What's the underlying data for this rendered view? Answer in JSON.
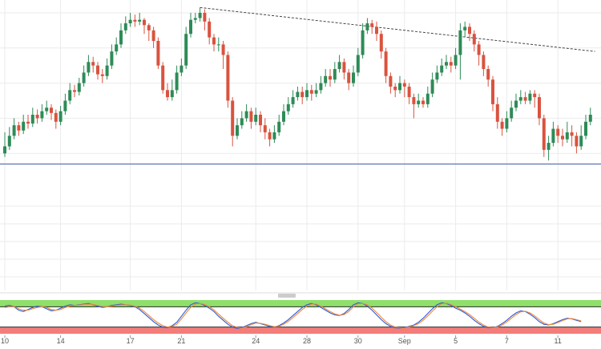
{
  "chart_data": [
    {
      "type": "candlestick",
      "title": "",
      "xlabel": "",
      "ylabel": "",
      "ylim": [
        0,
        100
      ],
      "grid": true,
      "x_ticks": [
        {
          "label": "10",
          "index": 0
        },
        {
          "label": "14",
          "index": 12
        },
        {
          "label": "17",
          "index": 27
        },
        {
          "label": "21",
          "index": 38
        },
        {
          "label": "24",
          "index": 54
        },
        {
          "label": "28",
          "index": 65
        },
        {
          "label": "30",
          "index": 76
        },
        {
          "label": "Sep",
          "index": 86
        },
        {
          "label": "5",
          "index": 97
        },
        {
          "label": "7",
          "index": 108
        },
        {
          "label": "11",
          "index": 119
        }
      ],
      "candles": [
        [
          20,
          24,
          32,
          18
        ],
        [
          24,
          30,
          35,
          22
        ],
        [
          30,
          36,
          40,
          28
        ],
        [
          36,
          33,
          38,
          30
        ],
        [
          33,
          38,
          42,
          31
        ],
        [
          38,
          37,
          42,
          34
        ],
        [
          37,
          42,
          46,
          35
        ],
        [
          42,
          40,
          45,
          37
        ],
        [
          40,
          44,
          48,
          38
        ],
        [
          44,
          46,
          50,
          42
        ],
        [
          46,
          43,
          48,
          39
        ],
        [
          43,
          38,
          45,
          34
        ],
        [
          38,
          44,
          47,
          36
        ],
        [
          44,
          50,
          54,
          42
        ],
        [
          50,
          56,
          60,
          48
        ],
        [
          56,
          55,
          59,
          52
        ],
        [
          55,
          60,
          63,
          53
        ],
        [
          60,
          66,
          70,
          58
        ],
        [
          66,
          72,
          76,
          64
        ],
        [
          72,
          70,
          75,
          66
        ],
        [
          70,
          65,
          72,
          62
        ],
        [
          65,
          64,
          68,
          60
        ],
        [
          64,
          70,
          74,
          62
        ],
        [
          70,
          78,
          82,
          68
        ],
        [
          78,
          82,
          86,
          76
        ],
        [
          82,
          90,
          94,
          80
        ],
        [
          90,
          94,
          98,
          88
        ],
        [
          94,
          96,
          100,
          92
        ],
        [
          96,
          95,
          99,
          92
        ],
        [
          95,
          96,
          100,
          93
        ],
        [
          96,
          93,
          97,
          88
        ],
        [
          93,
          90,
          94,
          84
        ],
        [
          90,
          84,
          92,
          80
        ],
        [
          84,
          70,
          86,
          68
        ],
        [
          70,
          56,
          72,
          54
        ],
        [
          56,
          52,
          60,
          50
        ],
        [
          52,
          56,
          62,
          50
        ],
        [
          56,
          66,
          70,
          54
        ],
        [
          66,
          70,
          74,
          64
        ],
        [
          70,
          88,
          92,
          68
        ],
        [
          88,
          96,
          100,
          86
        ],
        [
          96,
          97,
          100,
          94
        ],
        [
          97,
          100,
          103,
          95
        ],
        [
          100,
          95,
          102,
          90
        ],
        [
          95,
          86,
          97,
          82
        ],
        [
          86,
          82,
          88,
          78
        ],
        [
          82,
          82,
          86,
          78
        ],
        [
          82,
          76,
          84,
          68
        ],
        [
          76,
          50,
          78,
          46
        ],
        [
          50,
          30,
          52,
          24
        ],
        [
          30,
          36,
          40,
          28
        ],
        [
          36,
          40,
          44,
          34
        ],
        [
          40,
          44,
          48,
          38
        ],
        [
          44,
          38,
          46,
          34
        ],
        [
          38,
          42,
          46,
          36
        ],
        [
          42,
          36,
          44,
          32
        ],
        [
          36,
          32,
          40,
          28
        ],
        [
          32,
          28,
          34,
          24
        ],
        [
          28,
          32,
          36,
          26
        ],
        [
          32,
          38,
          42,
          30
        ],
        [
          38,
          44,
          48,
          36
        ],
        [
          44,
          48,
          52,
          42
        ],
        [
          48,
          52,
          56,
          46
        ],
        [
          52,
          55,
          58,
          50
        ],
        [
          55,
          52,
          58,
          48
        ],
        [
          52,
          56,
          60,
          50
        ],
        [
          56,
          54,
          59,
          50
        ],
        [
          54,
          56,
          60,
          52
        ],
        [
          56,
          60,
          64,
          54
        ],
        [
          60,
          64,
          68,
          58
        ],
        [
          64,
          62,
          68,
          58
        ],
        [
          62,
          68,
          72,
          60
        ],
        [
          68,
          72,
          76,
          66
        ],
        [
          72,
          66,
          74,
          62
        ],
        [
          66,
          60,
          68,
          56
        ],
        [
          60,
          66,
          70,
          58
        ],
        [
          66,
          76,
          80,
          64
        ],
        [
          76,
          90,
          94,
          74
        ],
        [
          90,
          94,
          97,
          88
        ],
        [
          94,
          92,
          96,
          88
        ],
        [
          92,
          88,
          95,
          84
        ],
        [
          88,
          78,
          90,
          74
        ],
        [
          78,
          64,
          80,
          60
        ],
        [
          64,
          58,
          66,
          54
        ],
        [
          58,
          56,
          60,
          52
        ],
        [
          56,
          60,
          64,
          54
        ],
        [
          60,
          58,
          62,
          52
        ],
        [
          58,
          52,
          60,
          48
        ],
        [
          52,
          48,
          54,
          40
        ],
        [
          48,
          50,
          54,
          46
        ],
        [
          50,
          48,
          52,
          46
        ],
        [
          48,
          54,
          58,
          46
        ],
        [
          54,
          62,
          66,
          52
        ],
        [
          62,
          66,
          70,
          60
        ],
        [
          66,
          70,
          74,
          64
        ],
        [
          70,
          72,
          76,
          68
        ],
        [
          72,
          70,
          75,
          66
        ],
        [
          70,
          76,
          80,
          68
        ],
        [
          76,
          90,
          94,
          62
        ],
        [
          90,
          92,
          95,
          86
        ],
        [
          92,
          88,
          94,
          84
        ],
        [
          88,
          82,
          90,
          78
        ],
        [
          82,
          76,
          84,
          70
        ],
        [
          76,
          68,
          78,
          64
        ],
        [
          68,
          62,
          70,
          58
        ],
        [
          62,
          48,
          64,
          44
        ],
        [
          48,
          38,
          52,
          34
        ],
        [
          38,
          34,
          40,
          30
        ],
        [
          34,
          40,
          44,
          32
        ],
        [
          40,
          46,
          50,
          38
        ],
        [
          46,
          50,
          54,
          44
        ],
        [
          50,
          52,
          56,
          48
        ],
        [
          52,
          50,
          55,
          48
        ],
        [
          50,
          54,
          56,
          48
        ],
        [
          54,
          52,
          56,
          46
        ],
        [
          52,
          40,
          54,
          36
        ],
        [
          40,
          22,
          42,
          18
        ],
        [
          22,
          26,
          30,
          16
        ],
        [
          26,
          34,
          38,
          24
        ],
        [
          34,
          30,
          36,
          26
        ],
        [
          30,
          28,
          34,
          24
        ],
        [
          28,
          32,
          38,
          26
        ],
        [
          32,
          30,
          36,
          24
        ],
        [
          30,
          24,
          32,
          20
        ],
        [
          24,
          30,
          36,
          22
        ],
        [
          30,
          38,
          42,
          28
        ],
        [
          38,
          42,
          46,
          36
        ]
      ],
      "horizontal_line": 14,
      "trendline": {
        "start_index": 42,
        "start_value": 103,
        "end_index": 127,
        "end_value": 78
      }
    },
    {
      "type": "line",
      "title": "",
      "ylim": [
        0,
        100
      ],
      "overbought_level": 80,
      "oversold_level": 20,
      "series": [
        {
          "color": "#2b5bd7",
          "values": [
            82,
            84,
            80,
            70,
            66,
            72,
            78,
            82,
            80,
            74,
            68,
            70,
            76,
            82,
            86,
            84,
            86,
            88,
            90,
            86,
            82,
            78,
            80,
            84,
            86,
            88,
            86,
            84,
            80,
            72,
            60,
            48,
            36,
            26,
            20,
            18,
            24,
            34,
            52,
            70,
            86,
            92,
            90,
            84,
            76,
            66,
            52,
            40,
            28,
            20,
            16,
            18,
            24,
            30,
            34,
            30,
            26,
            22,
            20,
            24,
            32,
            42,
            54,
            66,
            78,
            86,
            90,
            86,
            78,
            70,
            62,
            56,
            54,
            60,
            72,
            86,
            92,
            90,
            82,
            70,
            56,
            42,
            30,
            22,
            18,
            16,
            18,
            22,
            26,
            34,
            46,
            60,
            74,
            86,
            92,
            90,
            84,
            76,
            70,
            62,
            52,
            40,
            30,
            22,
            18,
            18,
            22,
            30,
            40,
            52,
            62,
            68,
            66,
            58,
            48,
            36,
            28,
            26,
            30,
            36,
            42,
            46,
            44,
            40,
            36
          ]
        },
        {
          "color": "#f0883e",
          "values": [
            78,
            80,
            80,
            74,
            70,
            70,
            74,
            78,
            80,
            78,
            72,
            70,
            72,
            78,
            82,
            84,
            85,
            87,
            88,
            87,
            84,
            81,
            80,
            82,
            84,
            86,
            86,
            85,
            82,
            76,
            66,
            54,
            42,
            32,
            24,
            20,
            22,
            28,
            44,
            62,
            78,
            88,
            90,
            87,
            80,
            71,
            58,
            46,
            34,
            24,
            19,
            17,
            21,
            27,
            32,
            31,
            28,
            24,
            21,
            22,
            28,
            37,
            48,
            60,
            72,
            82,
            88,
            88,
            82,
            74,
            66,
            59,
            55,
            57,
            66,
            80,
            89,
            90,
            86,
            76,
            63,
            49,
            36,
            26,
            20,
            17,
            17,
            20,
            24,
            30,
            40,
            53,
            67,
            80,
            89,
            91,
            87,
            80,
            73,
            66,
            57,
            46,
            35,
            26,
            20,
            18,
            20,
            26,
            35,
            46,
            57,
            65,
            67,
            62,
            53,
            42,
            32,
            27,
            28,
            33,
            39,
            44,
            45,
            42,
            38
          ]
        }
      ]
    }
  ],
  "colors": {
    "up": "#2e8b57",
    "down": "#d9533f",
    "overbought_band": "#8ee06a",
    "oversold_band": "#f27d7a",
    "support_line": "#3a5a99",
    "trendline": "#444444",
    "grid": "#ebebeb"
  }
}
